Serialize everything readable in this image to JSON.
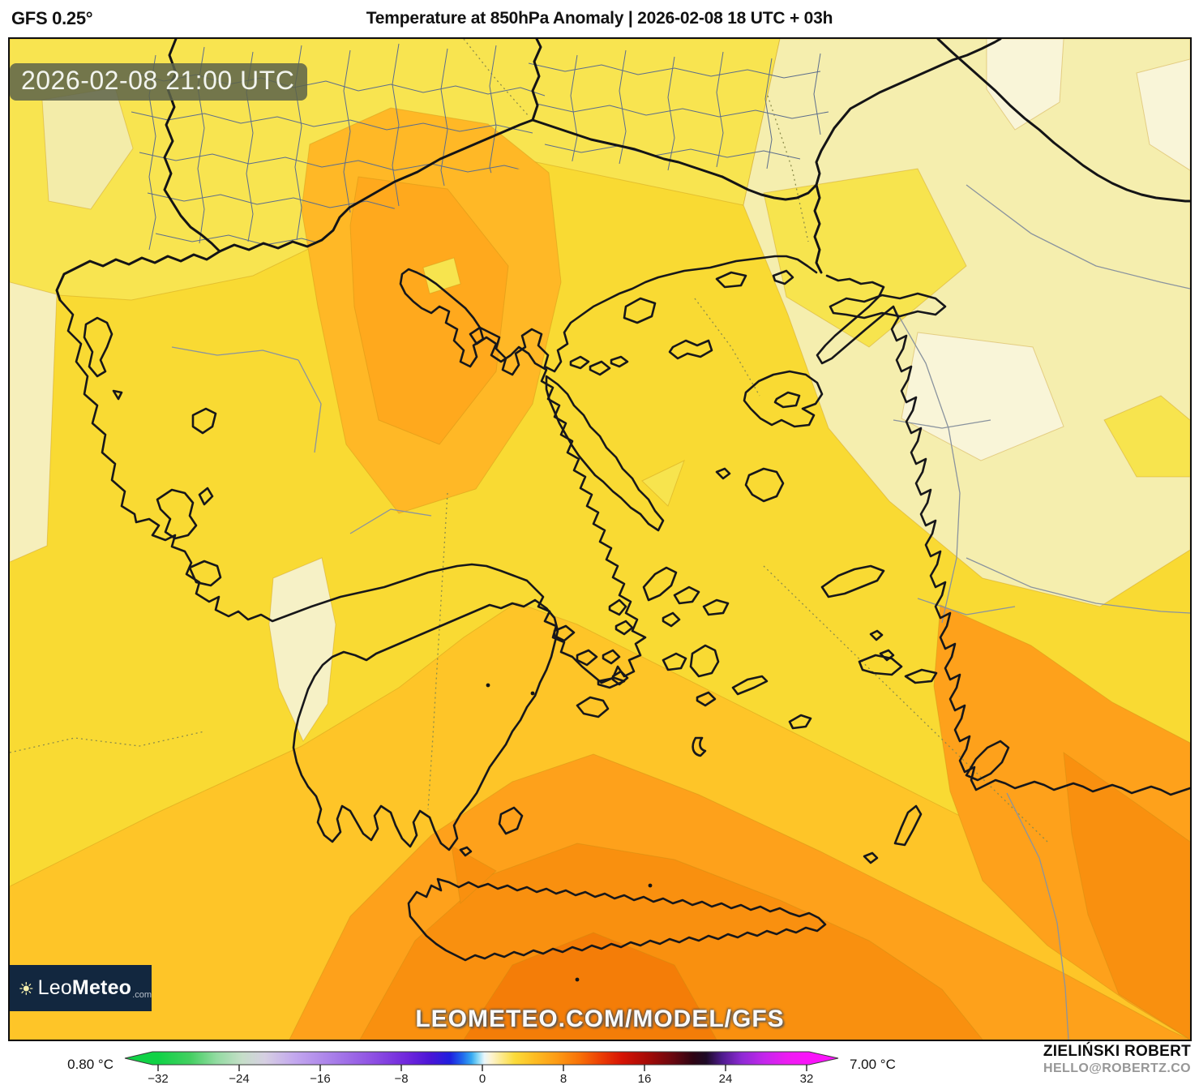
{
  "header": {
    "model": "GFS 0.25°",
    "title": "Temperature at 850hPa Anomaly | 2026-02-08 18 UTC + 03h"
  },
  "map": {
    "timestamp": "2026-02-08 21:00 UTC",
    "watermark": "LEOMETEO.COM/MODEL/GFS",
    "logo": {
      "leo": "Leo",
      "meteo": "Meteo",
      "tld": ".com"
    }
  },
  "legend": {
    "min_label": "0.80 °C",
    "max_label": "7.00 °C",
    "ticks": [
      "−32",
      "−24",
      "−16",
      "−8",
      "0",
      "8",
      "16",
      "24",
      "32"
    ],
    "gradient_stops": [
      [
        0.0,
        "#10d245"
      ],
      [
        0.05,
        "#44cf62"
      ],
      [
        0.09,
        "#92dba1"
      ],
      [
        0.13,
        "#c6dec9"
      ],
      [
        0.165,
        "#d6cfe2"
      ],
      [
        0.21,
        "#c3a8ee"
      ],
      [
        0.27,
        "#a87ee9"
      ],
      [
        0.33,
        "#8f51e3"
      ],
      [
        0.385,
        "#6f26dc"
      ],
      [
        0.42,
        "#4a14d6"
      ],
      [
        0.45,
        "#1f1ede"
      ],
      [
        0.468,
        "#1f63ec"
      ],
      [
        0.483,
        "#33a7f1"
      ],
      [
        0.493,
        "#86d7f6"
      ],
      [
        0.503,
        "#e9f6fc"
      ],
      [
        0.513,
        "#fdf4d4"
      ],
      [
        0.53,
        "#fce98b"
      ],
      [
        0.55,
        "#fbdb3a"
      ],
      [
        0.58,
        "#fdbd23"
      ],
      [
        0.615,
        "#fd9b14"
      ],
      [
        0.65,
        "#f87107"
      ],
      [
        0.685,
        "#ea3a04"
      ],
      [
        0.715,
        "#d61304"
      ],
      [
        0.755,
        "#a50a06"
      ],
      [
        0.795,
        "#670710"
      ],
      [
        0.825,
        "#2e0413"
      ],
      [
        0.845,
        "#1d0a26"
      ],
      [
        0.87,
        "#4f1b8e"
      ],
      [
        0.9,
        "#8e2ad4"
      ],
      [
        0.935,
        "#c427ec"
      ],
      [
        0.97,
        "#ed1cf2"
      ],
      [
        1.0,
        "#fa14fa"
      ]
    ]
  },
  "attribution": {
    "name": "ZIELIŃSKI ROBERT",
    "email": "HELLO@ROBERTZ.CO"
  },
  "colors": {
    "base_gold": "#f9da33",
    "lemon_north": "#f8e450",
    "nw_cream": "#f3eca9",
    "west_pale": "#f6efbb",
    "turkey_pale": "#f5eeae",
    "turkey_cream": "#f9f5d8",
    "yellow_wedge": "#f7e44e",
    "north_orange": "#ffb826",
    "north_orange_core": "#ffa91d",
    "amber_band": "#fec528",
    "orange_band": "#fea11b",
    "deep_orange": "#f9900f",
    "deepest_orange": "#f47d08",
    "pelo_cream": "#f6f1c6",
    "timestamp_bg": "#5c634a",
    "logo_bg": "#12273f",
    "coastline": "#17171a"
  }
}
